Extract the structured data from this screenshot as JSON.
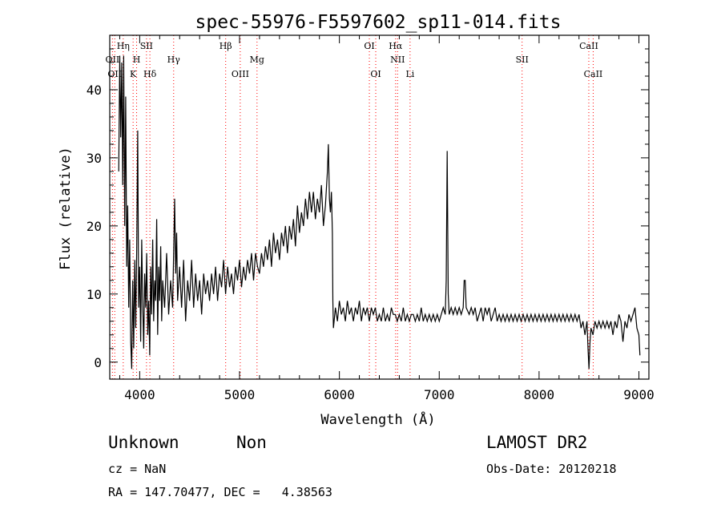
{
  "chart_data": {
    "type": "line",
    "title": "spec-55976-F5597602_sp11-014.fits",
    "xlabel": "Wavelength (Å)",
    "ylabel": "Flux (relative)",
    "xlim": [
      3700,
      9100
    ],
    "ylim": [
      -2.5,
      48
    ],
    "xticks": [
      4000,
      5000,
      6000,
      7000,
      8000,
      9000
    ],
    "yticks": [
      0,
      10,
      20,
      30,
      40
    ],
    "series": [
      {
        "values": [
          [
            3790,
            28
          ],
          [
            3800,
            45
          ],
          [
            3810,
            33
          ],
          [
            3820,
            44
          ],
          [
            3830,
            26
          ],
          [
            3840,
            45
          ],
          [
            3850,
            20
          ],
          [
            3860,
            39
          ],
          [
            3870,
            14
          ],
          [
            3880,
            23
          ],
          [
            3890,
            8
          ],
          [
            3900,
            18
          ],
          [
            3910,
            3
          ],
          [
            3920,
            -1
          ],
          [
            3930,
            12
          ],
          [
            3940,
            2
          ],
          [
            3950,
            15
          ],
          [
            3960,
            5
          ],
          [
            3970,
            17
          ],
          [
            3980,
            34
          ],
          [
            3990,
            8
          ],
          [
            4000,
            14
          ],
          [
            4010,
            3
          ],
          [
            4020,
            18
          ],
          [
            4030,
            9
          ],
          [
            4040,
            2
          ],
          [
            4050,
            13
          ],
          [
            4060,
            8
          ],
          [
            4070,
            16
          ],
          [
            4080,
            4
          ],
          [
            4090,
            9
          ],
          [
            4100,
            1
          ],
          [
            4110,
            14
          ],
          [
            4120,
            7
          ],
          [
            4130,
            18
          ],
          [
            4140,
            6
          ],
          [
            4150,
            12
          ],
          [
            4160,
            9
          ],
          [
            4170,
            21
          ],
          [
            4180,
            4
          ],
          [
            4190,
            14
          ],
          [
            4200,
            9
          ],
          [
            4210,
            17
          ],
          [
            4220,
            6
          ],
          [
            4230,
            12
          ],
          [
            4250,
            8
          ],
          [
            4270,
            16
          ],
          [
            4290,
            7
          ],
          [
            4310,
            12
          ],
          [
            4330,
            8
          ],
          [
            4350,
            24
          ],
          [
            4360,
            13
          ],
          [
            4370,
            19
          ],
          [
            4380,
            9
          ],
          [
            4400,
            14
          ],
          [
            4420,
            8
          ],
          [
            4440,
            15
          ],
          [
            4460,
            6
          ],
          [
            4480,
            12
          ],
          [
            4500,
            9
          ],
          [
            4520,
            15
          ],
          [
            4540,
            8
          ],
          [
            4560,
            13
          ],
          [
            4580,
            9
          ],
          [
            4600,
            12
          ],
          [
            4620,
            7
          ],
          [
            4640,
            13
          ],
          [
            4660,
            10
          ],
          [
            4680,
            12
          ],
          [
            4700,
            9
          ],
          [
            4720,
            13
          ],
          [
            4740,
            10
          ],
          [
            4760,
            14
          ],
          [
            4780,
            9
          ],
          [
            4800,
            13
          ],
          [
            4820,
            11
          ],
          [
            4840,
            15
          ],
          [
            4860,
            10
          ],
          [
            4880,
            14
          ],
          [
            4900,
            11
          ],
          [
            4920,
            13
          ],
          [
            4940,
            10
          ],
          [
            4960,
            14
          ],
          [
            4980,
            12
          ],
          [
            5000,
            15
          ],
          [
            5020,
            11
          ],
          [
            5040,
            14
          ],
          [
            5060,
            12
          ],
          [
            5080,
            15
          ],
          [
            5100,
            13
          ],
          [
            5120,
            16
          ],
          [
            5140,
            12
          ],
          [
            5160,
            16
          ],
          [
            5180,
            14
          ],
          [
            5200,
            13
          ],
          [
            5220,
            16
          ],
          [
            5240,
            14
          ],
          [
            5260,
            17
          ],
          [
            5280,
            15
          ],
          [
            5300,
            18
          ],
          [
            5320,
            14
          ],
          [
            5340,
            19
          ],
          [
            5360,
            16
          ],
          [
            5380,
            18
          ],
          [
            5400,
            15
          ],
          [
            5420,
            19
          ],
          [
            5440,
            17
          ],
          [
            5460,
            20
          ],
          [
            5480,
            16
          ],
          [
            5500,
            20
          ],
          [
            5520,
            18
          ],
          [
            5540,
            21
          ],
          [
            5560,
            17
          ],
          [
            5580,
            23
          ],
          [
            5600,
            19
          ],
          [
            5620,
            22
          ],
          [
            5640,
            20
          ],
          [
            5660,
            24
          ],
          [
            5680,
            21
          ],
          [
            5700,
            25
          ],
          [
            5720,
            22
          ],
          [
            5740,
            25
          ],
          [
            5760,
            21
          ],
          [
            5780,
            24
          ],
          [
            5800,
            22
          ],
          [
            5820,
            26
          ],
          [
            5840,
            20
          ],
          [
            5860,
            23
          ],
          [
            5880,
            28
          ],
          [
            5890,
            32
          ],
          [
            5900,
            24
          ],
          [
            5910,
            22
          ],
          [
            5920,
            25
          ],
          [
            5930,
            19
          ],
          [
            5935,
            9
          ],
          [
            5940,
            5
          ],
          [
            5960,
            8
          ],
          [
            5980,
            6
          ],
          [
            6000,
            9
          ],
          [
            6020,
            7
          ],
          [
            6040,
            8
          ],
          [
            6060,
            6
          ],
          [
            6080,
            9
          ],
          [
            6100,
            7
          ],
          [
            6120,
            8
          ],
          [
            6140,
            6
          ],
          [
            6160,
            8
          ],
          [
            6180,
            7
          ],
          [
            6200,
            9
          ],
          [
            6220,
            6
          ],
          [
            6240,
            8
          ],
          [
            6260,
            7
          ],
          [
            6280,
            8
          ],
          [
            6300,
            6
          ],
          [
            6320,
            8
          ],
          [
            6340,
            7
          ],
          [
            6360,
            8
          ],
          [
            6380,
            6
          ],
          [
            6400,
            7
          ],
          [
            6420,
            6
          ],
          [
            6440,
            8
          ],
          [
            6460,
            6
          ],
          [
            6480,
            7
          ],
          [
            6500,
            6
          ],
          [
            6520,
            8
          ],
          [
            6540,
            7
          ],
          [
            6560,
            7
          ],
          [
            6580,
            6
          ],
          [
            6600,
            7
          ],
          [
            6620,
            6
          ],
          [
            6640,
            8
          ],
          [
            6660,
            6
          ],
          [
            6680,
            7
          ],
          [
            6700,
            6
          ],
          [
            6720,
            7
          ],
          [
            6740,
            7
          ],
          [
            6760,
            6
          ],
          [
            6780,
            7
          ],
          [
            6800,
            6
          ],
          [
            6820,
            8
          ],
          [
            6840,
            6
          ],
          [
            6860,
            7
          ],
          [
            6880,
            6
          ],
          [
            6900,
            7
          ],
          [
            6920,
            6
          ],
          [
            6940,
            7
          ],
          [
            6960,
            6
          ],
          [
            6980,
            7
          ],
          [
            7000,
            6
          ],
          [
            7020,
            7
          ],
          [
            7040,
            8
          ],
          [
            7060,
            7
          ],
          [
            7070,
            12
          ],
          [
            7080,
            31
          ],
          [
            7090,
            10
          ],
          [
            7100,
            7
          ],
          [
            7120,
            8
          ],
          [
            7140,
            7
          ],
          [
            7160,
            8
          ],
          [
            7180,
            7
          ],
          [
            7200,
            8
          ],
          [
            7220,
            7
          ],
          [
            7240,
            8
          ],
          [
            7250,
            12
          ],
          [
            7260,
            12
          ],
          [
            7270,
            8
          ],
          [
            7300,
            7
          ],
          [
            7320,
            8
          ],
          [
            7340,
            7
          ],
          [
            7360,
            8
          ],
          [
            7380,
            6
          ],
          [
            7400,
            7
          ],
          [
            7420,
            8
          ],
          [
            7440,
            6
          ],
          [
            7460,
            8
          ],
          [
            7480,
            7
          ],
          [
            7500,
            8
          ],
          [
            7520,
            6
          ],
          [
            7540,
            7
          ],
          [
            7560,
            8
          ],
          [
            7580,
            6
          ],
          [
            7600,
            7
          ],
          [
            7620,
            6
          ],
          [
            7640,
            7
          ],
          [
            7660,
            6
          ],
          [
            7680,
            7
          ],
          [
            7700,
            6
          ],
          [
            7720,
            7
          ],
          [
            7740,
            6
          ],
          [
            7760,
            7
          ],
          [
            7780,
            6
          ],
          [
            7800,
            7
          ],
          [
            7820,
            6
          ],
          [
            7840,
            7
          ],
          [
            7860,
            6
          ],
          [
            7880,
            7
          ],
          [
            7900,
            6
          ],
          [
            7920,
            7
          ],
          [
            7940,
            6
          ],
          [
            7960,
            7
          ],
          [
            7980,
            6
          ],
          [
            8000,
            7
          ],
          [
            8020,
            6
          ],
          [
            8040,
            7
          ],
          [
            8060,
            6
          ],
          [
            8080,
            7
          ],
          [
            8100,
            6
          ],
          [
            8120,
            7
          ],
          [
            8140,
            6
          ],
          [
            8160,
            7
          ],
          [
            8180,
            6
          ],
          [
            8200,
            7
          ],
          [
            8220,
            6
          ],
          [
            8240,
            7
          ],
          [
            8260,
            6
          ],
          [
            8280,
            7
          ],
          [
            8300,
            6
          ],
          [
            8320,
            7
          ],
          [
            8340,
            6
          ],
          [
            8360,
            7
          ],
          [
            8380,
            6
          ],
          [
            8400,
            7
          ],
          [
            8420,
            5
          ],
          [
            8440,
            6
          ],
          [
            8460,
            4
          ],
          [
            8480,
            6
          ],
          [
            8490,
            2
          ],
          [
            8500,
            -1
          ],
          [
            8510,
            3
          ],
          [
            8520,
            5
          ],
          [
            8540,
            4
          ],
          [
            8560,
            6
          ],
          [
            8580,
            5
          ],
          [
            8600,
            6
          ],
          [
            8620,
            5
          ],
          [
            8640,
            6
          ],
          [
            8660,
            5
          ],
          [
            8680,
            6
          ],
          [
            8700,
            5
          ],
          [
            8720,
            6
          ],
          [
            8740,
            4
          ],
          [
            8760,
            6
          ],
          [
            8780,
            5
          ],
          [
            8800,
            7
          ],
          [
            8820,
            6
          ],
          [
            8840,
            3
          ],
          [
            8860,
            6
          ],
          [
            8880,
            5
          ],
          [
            8900,
            7
          ],
          [
            8920,
            6
          ],
          [
            8940,
            7
          ],
          [
            8960,
            8
          ],
          [
            8980,
            5
          ],
          [
            9000,
            4
          ],
          [
            9010,
            1
          ]
        ]
      }
    ],
    "lines": [
      {
        "wave": 3727,
        "label": "OII",
        "row": 2
      },
      {
        "wave": 3750,
        "label": "OII",
        "row": 3
      },
      {
        "wave": 3835,
        "label": "Hη",
        "row": 1
      },
      {
        "wave": 3934,
        "label": "K",
        "row": 3
      },
      {
        "wave": 3969,
        "label": "H",
        "row": 2
      },
      {
        "wave": 4068,
        "label": "SII",
        "row": 1
      },
      {
        "wave": 4102,
        "label": "Hδ",
        "row": 3
      },
      {
        "wave": 4340,
        "label": "Hγ",
        "row": 2
      },
      {
        "wave": 4861,
        "label": "Hβ",
        "row": 1
      },
      {
        "wave": 5007,
        "label": "OIII",
        "row": 3
      },
      {
        "wave": 5175,
        "label": "Mg",
        "row": 2
      },
      {
        "wave": 6300,
        "label": "OI",
        "row": 1
      },
      {
        "wave": 6364,
        "label": "OI",
        "row": 3
      },
      {
        "wave": 6563,
        "label": "Hα",
        "row": 1
      },
      {
        "wave": 6583,
        "label": "NII",
        "row": 2
      },
      {
        "wave": 6708,
        "label": "Li",
        "row": 3
      },
      {
        "wave": 7830,
        "label": "SII",
        "row": 2
      },
      {
        "wave": 8498,
        "label": "CaII",
        "row": 1
      },
      {
        "wave": 8542,
        "label": "CaII",
        "row": 3
      }
    ],
    "grid": false,
    "line_marker_color": "#ff0000"
  },
  "info": {
    "object_class": "Unknown",
    "object_subclass": "Non",
    "survey": "LAMOST DR2",
    "redshift_line": "cz = NaN",
    "obs_date_line": "Obs-Date: 20120218",
    "coords_line": "RA = 147.70477, DEC =   4.38563"
  }
}
